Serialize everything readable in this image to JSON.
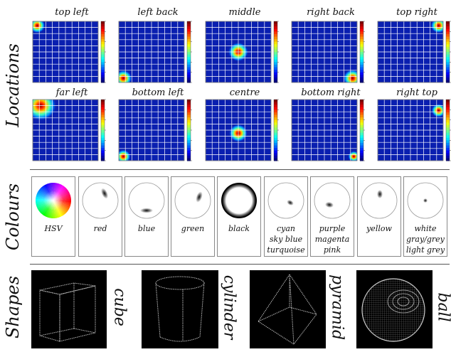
{
  "sections": {
    "locations": "Locations",
    "colours": "Colours",
    "shapes": "Shapes"
  },
  "locations": [
    {
      "title": "top left",
      "blob": [
        0.07,
        0.93
      ],
      "spread": 0.055
    },
    {
      "title": "left back",
      "blob": [
        0.07,
        0.07
      ],
      "spread": 0.06
    },
    {
      "title": "middle",
      "blob": [
        0.5,
        0.5
      ],
      "spread": 0.07
    },
    {
      "title": "right back",
      "blob": [
        0.93,
        0.07
      ],
      "spread": 0.065
    },
    {
      "title": "top right",
      "blob": [
        0.93,
        0.93
      ],
      "spread": 0.055
    },
    {
      "title": "far left",
      "blob": [
        0.12,
        0.9
      ],
      "spread": 0.11
    },
    {
      "title": "bottom left",
      "blob": [
        0.07,
        0.07
      ],
      "spread": 0.05
    },
    {
      "title": "centre",
      "blob": [
        0.5,
        0.45
      ],
      "spread": 0.065
    },
    {
      "title": "bottom right",
      "blob": [
        0.95,
        0.07
      ],
      "spread": 0.04
    },
    {
      "title": "right top",
      "blob": [
        0.93,
        0.82
      ],
      "spread": 0.05
    }
  ],
  "colours": [
    {
      "label": [
        "HSV"
      ]
    },
    {
      "label": [
        "red"
      ]
    },
    {
      "label": [
        "blue"
      ]
    },
    {
      "label": [
        "green"
      ]
    },
    {
      "label": [
        "black"
      ]
    },
    {
      "label": [
        "cyan",
        "sky blue",
        "turquoise"
      ]
    },
    {
      "label": [
        "purple",
        "magenta",
        "pink"
      ]
    },
    {
      "label": [
        "yellow"
      ]
    },
    {
      "label": [
        "white",
        "gray/grey",
        "light grey"
      ]
    }
  ],
  "shapes": [
    {
      "label": "cube"
    },
    {
      "label": "cylinder"
    },
    {
      "label": "pyramid"
    },
    {
      "label": "ball"
    }
  ],
  "colors": {
    "map_background": "#0a1fb0",
    "grid": "#ffffff"
  }
}
